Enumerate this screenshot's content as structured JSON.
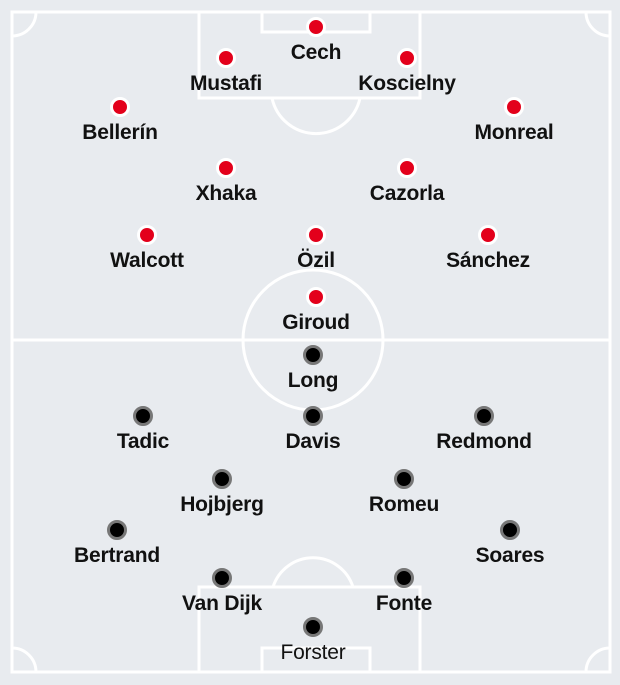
{
  "colors": {
    "background": "#e8ebef",
    "lines": "#ffffff",
    "home_dot": "#e3001b",
    "away_dot": "#000000",
    "away_ring": "#777777"
  },
  "teams": [
    {
      "side": "top",
      "players": [
        "Cech",
        "Mustafi",
        "Koscielny",
        "Bellerín",
        "Monreal",
        "Xhaka",
        "Cazorla",
        "Walcott",
        "Özil",
        "Sánchez",
        "Giroud"
      ]
    },
    {
      "side": "bottom",
      "players": [
        "Long",
        "Tadic",
        "Davis",
        "Redmond",
        "Hojbjerg",
        "Romeu",
        "Bertrand",
        "Soares",
        "Van Dijk",
        "Fonte",
        "Forster"
      ]
    }
  ]
}
